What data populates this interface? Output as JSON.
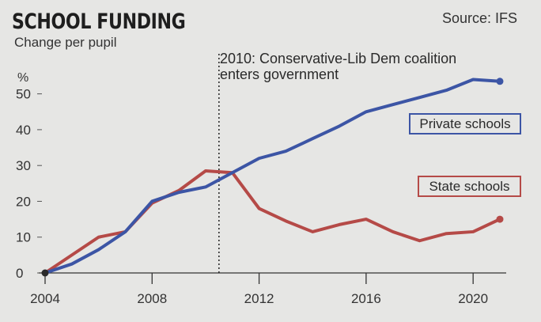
{
  "chart_data": {
    "type": "line",
    "title": "SCHOOL FUNDING",
    "subtitle": "Change per pupil",
    "source": "Source: IFS",
    "ylabel": "%",
    "xlabel": "",
    "xlim": [
      2004,
      2021
    ],
    "ylim": [
      0,
      55
    ],
    "x_ticks": [
      2004,
      2008,
      2012,
      2016,
      2020
    ],
    "y_ticks": [
      0,
      10,
      20,
      30,
      40,
      50
    ],
    "annotation": {
      "x": 2010.5,
      "text_line1": "2010: Conservative-Lib Dem coalition",
      "text_line2": "enters government"
    },
    "series": [
      {
        "name": "Private schools",
        "color": "#3c55a5",
        "x": [
          2004,
          2005,
          2006,
          2007,
          2008,
          2009,
          2010,
          2011,
          2012,
          2013,
          2014,
          2015,
          2016,
          2017,
          2018,
          2019,
          2020,
          2021
        ],
        "values": [
          0,
          2.5,
          6.5,
          11.5,
          20,
          22.5,
          24,
          28,
          32,
          34,
          37.5,
          41,
          45,
          47,
          49,
          51,
          54,
          53.5
        ]
      },
      {
        "name": "State schools",
        "color": "#b54a47",
        "x": [
          2004,
          2005,
          2006,
          2007,
          2008,
          2009,
          2010,
          2011,
          2012,
          2013,
          2014,
          2015,
          2016,
          2017,
          2018,
          2019,
          2020,
          2021
        ],
        "values": [
          0,
          5,
          10,
          11.5,
          19.5,
          23,
          28.5,
          28,
          18,
          14.5,
          11.5,
          13.5,
          15,
          11.5,
          9,
          11,
          11.5,
          15
        ]
      }
    ]
  }
}
